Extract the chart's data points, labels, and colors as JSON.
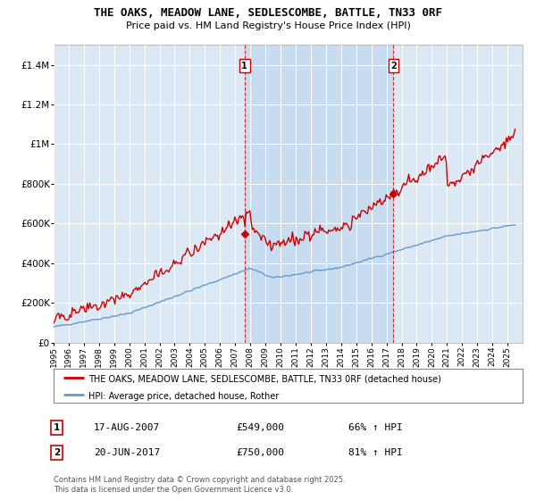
{
  "title": "THE OAKS, MEADOW LANE, SEDLESCOMBE, BATTLE, TN33 0RF",
  "subtitle": "Price paid vs. HM Land Registry's House Price Index (HPI)",
  "legend_line1": "THE OAKS, MEADOW LANE, SEDLESCOMBE, BATTLE, TN33 0RF (detached house)",
  "legend_line2": "HPI: Average price, detached house, Rother",
  "footnote": "Contains HM Land Registry data © Crown copyright and database right 2025.\nThis data is licensed under the Open Government Licence v3.0.",
  "sale1_date": "17-AUG-2007",
  "sale1_price": "£549,000",
  "sale1_hpi": "66% ↑ HPI",
  "sale2_date": "20-JUN-2017",
  "sale2_price": "£750,000",
  "sale2_hpi": "81% ↑ HPI",
  "red_color": "#cc0000",
  "blue_color": "#6699cc",
  "bg_color": "#dce9f5",
  "highlight_color": "#c8dcf0",
  "grid_color": "#ffffff",
  "ylim": [
    0,
    1500000
  ],
  "yticks": [
    0,
    200000,
    400000,
    600000,
    800000,
    1000000,
    1200000,
    1400000
  ],
  "xlim_start": 1995.0,
  "xlim_end": 2026.0,
  "sale1_x": 2007.625,
  "sale1_y": 549000,
  "sale2_x": 2017.458,
  "sale2_y": 750000
}
